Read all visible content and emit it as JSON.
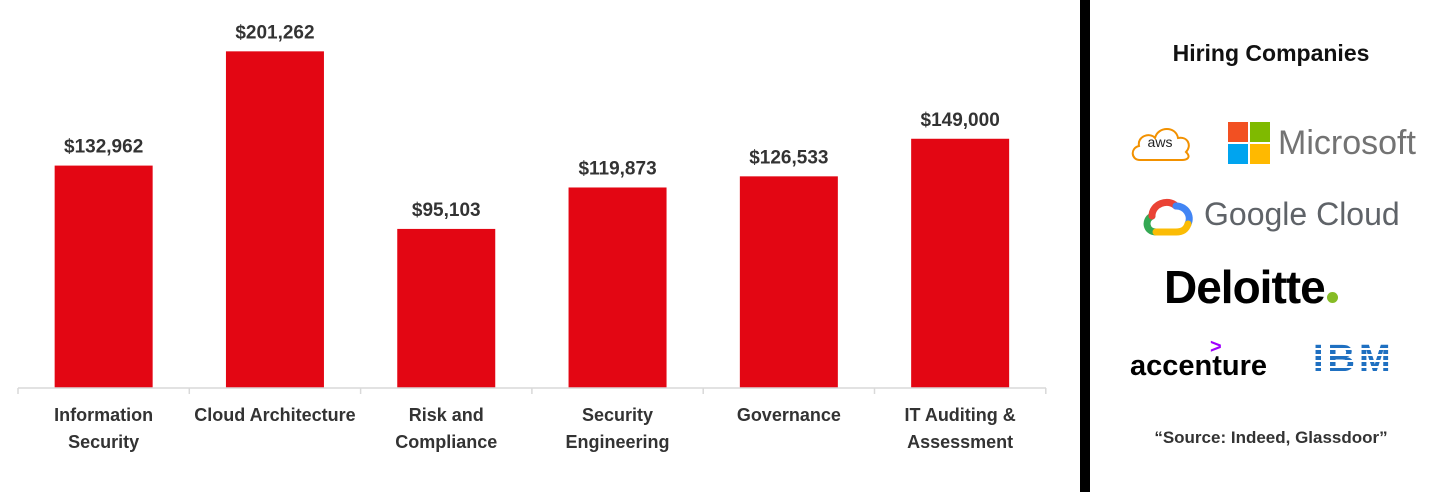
{
  "chart_data": {
    "type": "bar",
    "categories": [
      [
        "Information",
        "Security"
      ],
      [
        "Cloud Architecture"
      ],
      [
        "Risk and",
        "Compliance"
      ],
      [
        "Security",
        "Engineering"
      ],
      [
        "Governance"
      ],
      [
        "IT Auditing &",
        "Assessment"
      ]
    ],
    "values": [
      132962,
      201262,
      95103,
      119873,
      126533,
      149000
    ],
    "value_labels": [
      "$132,962",
      "$201,262",
      "$95,103",
      "$119,873",
      "$126,533",
      "$149,000"
    ],
    "ylim": [
      0,
      220000
    ],
    "grid": false,
    "bar_color": "#e30613",
    "axis_color": "#d9d9d9"
  },
  "sidebar": {
    "title": "Hiring Companies",
    "source": "“Source: Indeed, Glassdoor”",
    "logos": {
      "aws": "aws",
      "microsoft": "Microsoft",
      "google": "Google Cloud",
      "deloitte": "Deloitte",
      "accenture": "accenture",
      "ibm": "IBM"
    }
  },
  "colors": {
    "divider": "#000000",
    "deloitte_dot": "#86bc25",
    "accenture_accent": "#a100ff",
    "ibm_blue": "#1f70c1",
    "microsoft_squares": [
      "#f25022",
      "#7fba00",
      "#00a4ef",
      "#ffb900"
    ]
  },
  "icons": [
    "aws-cloud-icon",
    "microsoft-grid-icon",
    "google-cloud-icon",
    "accenture-caret-icon"
  ]
}
